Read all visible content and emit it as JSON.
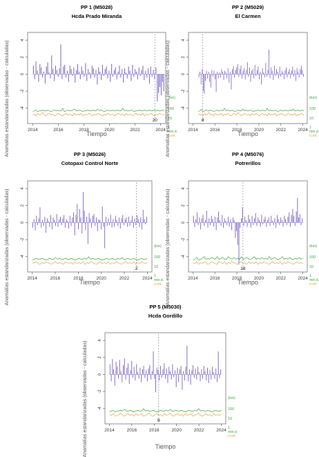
{
  "figure": {
    "ylabel": "Anomalías estandarizadas (observadas - calculadas)",
    "xlabel": "Tiempo",
    "right_labels": {
      "km": "(km)",
      "r100": "100",
      "r10": "10",
      "r1": "1",
      "mind": "min.d.",
      "nref": "n.ref."
    },
    "colors": {
      "bars": "#7b63c8",
      "green": "#3aa63a",
      "orange": "#e6a23c",
      "axis": "#444444",
      "marker": "#888888"
    }
  },
  "chart_data": [
    {
      "type": "bar",
      "title": "PP    1 (M5028)",
      "subtitle": "Hcda Prado Miranda",
      "xlim": [
        2013.6,
        2024.4
      ],
      "ylim": [
        -5.8,
        4.9
      ],
      "yticks": [
        -4,
        -2,
        0,
        2,
        4
      ],
      "xticks": [
        2014,
        2016,
        2018,
        2020,
        2022,
        2024
      ],
      "series_start": 2014.0,
      "series_end": 2024.3,
      "marker_x": 2023.55,
      "marker_label": "20",
      "bar_values": [
        1.0,
        -0.6,
        1.5,
        0.4,
        -0.9,
        1.2,
        0.8,
        -0.4,
        0.3,
        -1.1,
        0.9,
        1.4,
        0.2,
        -0.5,
        2.2,
        0.6,
        -0.8,
        1.0,
        0.5,
        -0.3,
        0.7,
        3.5,
        -0.6,
        0.9,
        1.1,
        -0.4,
        0.4,
        -0.9,
        1.0,
        0.6,
        -0.2,
        0.8,
        -1.0,
        0.5,
        1.2,
        0.3,
        -0.6,
        0.9,
        0.4,
        -0.3,
        1.3,
        -0.8,
        0.6,
        0.2,
        -0.5,
        1.0,
        0.7,
        -0.4,
        0.5,
        -1.2,
        0.8,
        0.3,
        -0.7,
        1.1,
        -0.2,
        0.6,
        0.9,
        -0.5,
        0.4,
        -0.9,
        1.2,
        -0.3,
        0.5,
        0.8,
        -0.6,
        0.3,
        1.0,
        -0.4,
        0.6,
        -1.0,
        0.7,
        0.2,
        -0.5,
        0.9,
        0.4,
        -0.8,
        1.1,
        -0.3,
        0.6,
        0.3,
        -0.6,
        0.8,
        -0.2,
        0.5,
        1.0,
        -0.7,
        0.4,
        -0.4,
        0.7,
        -1.1,
        0.9,
        -0.3,
        0.5,
        -0.6,
        0.8,
        -3.2,
        -2.2,
        -1.5,
        -2.5,
        -0.9,
        -2.0
      ],
      "green_values": [
        4.4,
        4.3,
        4.2,
        4.4,
        4.3,
        4.3,
        4.2,
        4.3,
        4.3,
        4.2,
        4.3,
        4.4,
        4.3,
        4.2,
        4.3,
        4.2,
        4.3,
        4.3,
        4.0,
        4.4,
        4.3,
        4.2,
        4.3,
        4.3,
        4.2,
        4.1,
        4.3,
        4.3,
        4.2,
        4.3,
        4.4,
        4.3,
        4.3,
        4.2,
        4.3,
        4.3,
        4.2,
        4.3,
        4.3,
        4.1,
        4.3,
        4.2,
        4.3,
        4.4,
        4.3,
        4.2,
        4.3,
        4.3,
        4.2,
        4.3,
        4.3,
        4.2,
        4.3,
        4.3,
        4.0,
        4.3,
        4.2,
        4.3,
        4.3,
        4.2,
        4.3,
        4.4,
        4.3,
        4.3,
        4.2,
        4.3,
        4.3,
        4.2,
        4.3,
        4.3,
        4.2,
        4.3,
        4.3,
        4.2,
        4.3,
        4.2,
        4.3,
        4.3,
        4.2,
        4.3
      ],
      "orange_values": [
        4.8,
        4.7,
        4.9,
        4.6,
        4.8,
        4.7,
        4.5,
        4.8,
        4.9,
        4.7,
        4.6,
        4.8,
        4.7,
        4.9,
        4.8,
        4.6,
        4.7,
        4.8,
        4.9,
        4.7,
        4.6,
        4.8,
        4.7,
        4.8,
        4.9,
        4.6,
        4.8,
        4.7,
        4.8,
        4.6,
        4.9,
        4.7,
        4.8,
        4.7,
        4.6,
        4.8,
        4.9,
        4.7,
        4.8,
        4.6,
        4.7,
        4.8,
        4.9,
        4.7,
        4.8,
        4.6,
        4.7,
        4.8,
        4.7,
        4.9,
        4.8,
        4.6,
        4.7,
        4.8,
        4.7,
        4.9,
        4.6,
        4.8,
        4.7,
        4.8,
        4.9,
        4.7,
        4.6,
        4.8,
        4.7,
        4.8,
        4.6,
        4.9,
        4.7,
        4.8,
        4.7,
        4.6,
        4.8,
        4.9,
        4.7,
        4.8,
        4.6,
        4.7,
        4.8,
        4.7
      ]
    },
    {
      "type": "bar",
      "title": "PP    2 (M5029)",
      "subtitle": "El Carmen",
      "xlim": [
        2013.6,
        2024.4
      ],
      "ylim": [
        -5.8,
        4.9
      ],
      "yticks": [
        -4,
        -2,
        0,
        2,
        4
      ],
      "xticks": [
        2014,
        2016,
        2018,
        2020,
        2022,
        2024
      ],
      "series_start": 2014.5,
      "series_end": 2024.1,
      "marker_x": 2014.9,
      "marker_label": "8",
      "bar_values": [
        -0.4,
        0.3,
        -1.2,
        0.6,
        -2.0,
        -2.3,
        -0.8,
        0.4,
        -0.5,
        0.3,
        -0.9,
        -1.6,
        0.5,
        -0.3,
        0.4,
        -0.6,
        -2.1,
        0.3,
        -0.5,
        0.2,
        -0.4,
        0.6,
        0.3,
        -0.7,
        0.4,
        0.2,
        -0.5,
        0.7,
        -1.0,
        0.3,
        -1.8,
        0.6,
        0.9,
        -0.4,
        0.5,
        0.8,
        1.2,
        -0.3,
        0.6,
        1.0,
        -0.5,
        0.4,
        0.7,
        -0.6,
        0.5,
        1.4,
        -0.3,
        0.8,
        -0.9,
        0.4,
        0.6,
        -0.5,
        1.1,
        -0.2,
        0.5,
        0.9,
        -0.6,
        0.3,
        -1.2,
        0.7,
        0.2,
        -0.4,
        1.3,
        -0.3,
        0.5,
        2.9,
        -0.5,
        0.8,
        0.4,
        -0.7,
        1.0,
        -0.2,
        0.6,
        0.3,
        -0.5,
        0.9,
        -0.3,
        0.4,
        0.2,
        -0.6,
        0.5,
        0.8,
        -0.4,
        0.3,
        0.6,
        -0.5,
        0.4,
        0.9,
        -0.3,
        0.5,
        -0.8,
        0.7,
        0.3,
        -0.4,
        0.6,
        1.0,
        0.5,
        -0.3
      ],
      "green_values": [
        4.4,
        4.3,
        4.1,
        4.4,
        4.3,
        4.2,
        4.3,
        4.3,
        4.2,
        4.3,
        4.4,
        4.3,
        4.2,
        4.3,
        4.3,
        4.2,
        4.3,
        4.0,
        4.3,
        4.2,
        4.3,
        4.3,
        4.2,
        4.3,
        4.4,
        4.3,
        4.2,
        4.3,
        4.3,
        4.1,
        4.3,
        4.2,
        4.3,
        4.3,
        4.2,
        4.3,
        4.4,
        4.3,
        4.3,
        4.2,
        4.3,
        4.3,
        4.2,
        4.3,
        4.3,
        4.0,
        4.3,
        4.2,
        4.3,
        4.3,
        4.2,
        4.3,
        4.4,
        4.3,
        4.2,
        4.3,
        4.3,
        4.2,
        4.3,
        4.3,
        4.2,
        4.3,
        4.1,
        4.3,
        4.3,
        4.2,
        4.3,
        4.3,
        4.2,
        4.3
      ],
      "orange_values": [
        4.6,
        4.8,
        4.7,
        4.9,
        4.6,
        4.8,
        4.7,
        4.5,
        4.8,
        4.7,
        4.9,
        4.6,
        4.8,
        4.7,
        4.8,
        4.6,
        4.9,
        4.7,
        4.8,
        4.6,
        4.7,
        4.9,
        4.8,
        4.6,
        4.7,
        4.8,
        4.5,
        4.7,
        4.9,
        4.8,
        4.6,
        4.7,
        4.8,
        4.7,
        4.9,
        4.6,
        4.8,
        4.7,
        4.6,
        4.8,
        4.9,
        4.7,
        4.6,
        4.8,
        4.7,
        4.9,
        4.6,
        4.8,
        4.7,
        4.8,
        4.6,
        4.9,
        4.7,
        4.8,
        4.6,
        4.7,
        4.8,
        4.9,
        4.7,
        4.6,
        4.8,
        4.7,
        4.8,
        4.6,
        4.9,
        4.7,
        4.8,
        4.6,
        4.7,
        4.8
      ]
    },
    {
      "type": "bar",
      "title": "PP    3 (M5026)",
      "subtitle": "Cotopaxi Control Norte",
      "xlim": [
        2013.6,
        2024.4
      ],
      "ylim": [
        -5.8,
        4.9
      ],
      "yticks": [
        -4,
        -2,
        0,
        2,
        4
      ],
      "xticks": [
        2014,
        2016,
        2018,
        2020,
        2022,
        2024
      ],
      "series_start": 2014.0,
      "series_end": 2024.0,
      "marker_x": 2023.05,
      "marker_label": "2",
      "bar_values": [
        -0.6,
        0.4,
        -0.9,
        0.8,
        -0.3,
        0.5,
        1.8,
        -0.6,
        0.3,
        -0.4,
        0.7,
        -1.2,
        0.5,
        0.2,
        -0.5,
        0.9,
        -0.8,
        0.6,
        0.3,
        -0.4,
        1.0,
        -0.5,
        0.4,
        0.7,
        -0.3,
        0.5,
        0.9,
        -0.6,
        0.4,
        0.2,
        -0.7,
        0.8,
        -0.4,
        0.6,
        1.2,
        -1.5,
        0.9,
        2.2,
        -0.8,
        1.6,
        0.6,
        -1.3,
        3.6,
        1.4,
        -0.9,
        0.7,
        -2.5,
        1.1,
        0.5,
        -0.6,
        0.8,
        1.0,
        -0.4,
        0.6,
        -1.0,
        0.4,
        0.3,
        -0.8,
        1.9,
        -0.5,
        -3.0,
        0.7,
        -0.4,
        0.5,
        -0.3,
        0.9,
        -0.6,
        0.4,
        -0.5,
        0.8,
        0.3,
        -0.4,
        0.6,
        -0.7,
        0.5,
        0.9,
        -0.3,
        0.4,
        0.6,
        -0.5,
        0.7,
        -0.4,
        0.3,
        0.8,
        -0.6,
        0.5,
        -0.3,
        0.9,
        0.4,
        -0.5,
        0.6,
        -0.8,
        1.5,
        0.4,
        -0.2,
        0.7
      ],
      "green_values": [
        4.4,
        4.3,
        4.2,
        4.3,
        4.3,
        4.2,
        4.3,
        4.4,
        4.3,
        4.2,
        4.3,
        4.3,
        4.1,
        4.3,
        4.2,
        4.3,
        4.3,
        4.2,
        4.3,
        4.3,
        4.2,
        4.3,
        4.4,
        4.3,
        4.2,
        4.3,
        4.3,
        4.2,
        4.3,
        4.0,
        4.3,
        4.2,
        4.3,
        4.3,
        4.2,
        4.3,
        4.4,
        4.3,
        4.2,
        4.3,
        4.3,
        4.2,
        4.3,
        4.3,
        4.2,
        4.3,
        4.1,
        4.3,
        4.3,
        4.2,
        4.3,
        4.3,
        4.2,
        4.3,
        4.4,
        4.3,
        4.2,
        4.3,
        4.3,
        4.2
      ],
      "orange_values": [
        4.8,
        4.7,
        4.6,
        4.8,
        4.9,
        4.7,
        4.8,
        4.6,
        4.7,
        4.8,
        4.9,
        4.7,
        4.6,
        4.8,
        4.7,
        4.8,
        4.9,
        4.6,
        4.7,
        4.8,
        4.7,
        4.9,
        4.6,
        4.8,
        4.7,
        4.8,
        4.6,
        4.9,
        4.7,
        4.8,
        4.6,
        4.7,
        4.8,
        4.9,
        4.7,
        4.6,
        4.8,
        4.7,
        4.8,
        4.6,
        4.9,
        4.7,
        4.8,
        4.6,
        4.7,
        4.8,
        4.9,
        4.7,
        4.6,
        4.8,
        4.7,
        4.8,
        4.6,
        4.9,
        4.7,
        4.8,
        4.6,
        4.7,
        4.8,
        4.7
      ]
    },
    {
      "type": "bar",
      "title": "PP    4 (M5076)",
      "subtitle": "Potrerillos",
      "xlim": [
        2013.6,
        2024.4
      ],
      "ylim": [
        -5.8,
        4.9
      ],
      "yticks": [
        -4,
        -2,
        0,
        2,
        4
      ],
      "xticks": [
        2014,
        2016,
        2018,
        2020,
        2022,
        2024
      ],
      "series_start": 2014.0,
      "series_end": 2024.0,
      "marker_x": 2018.55,
      "marker_label": "18",
      "bar_values": [
        0.8,
        -0.5,
        0.4,
        1.2,
        -0.3,
        0.6,
        -0.8,
        0.5,
        0.9,
        -0.4,
        0.3,
        1.4,
        -0.6,
        0.5,
        -0.3,
        0.8,
        0.4,
        -0.5,
        0.7,
        -0.9,
        0.6,
        1.3,
        0.3,
        -0.4,
        0.9,
        -0.6,
        0.5,
        0.2,
        -0.3,
        0.7,
        -0.5,
        0.4,
        -0.9,
        0.6,
        0.3,
        -1.8,
        -1.0,
        -2.6,
        -4.9,
        -0.6,
        0.5,
        1.8,
        -0.4,
        0.7,
        0.3,
        -0.5,
        0.9,
        0.4,
        -0.6,
        0.8,
        -0.3,
        0.5,
        1.1,
        -0.4,
        0.6,
        0.3,
        -0.5,
        0.9,
        -0.2,
        0.4,
        0.7,
        -0.5,
        0.3,
        0.6,
        -0.4,
        0.8,
        0.2,
        -0.3,
        0.5,
        -0.6,
        0.9,
        0.4,
        -0.3,
        0.6,
        0.3,
        -0.5,
        0.8,
        0.4,
        -0.3,
        0.7,
        1.2,
        -0.5,
        0.9,
        1.6,
        0.8,
        -0.4,
        1.3,
        2.9,
        0.6,
        1.0,
        -0.3,
        0.5
      ],
      "green_values": [
        4.4,
        4.3,
        4.1,
        4.4,
        4.3,
        4.2,
        4.0,
        4.3,
        4.2,
        4.3,
        4.1,
        4.2,
        4.3,
        4.0,
        4.3,
        4.2,
        4.1,
        4.3,
        4.3,
        4.0,
        4.2,
        4.3,
        4.1,
        4.3,
        4.2,
        4.3,
        4.0,
        4.3,
        4.2,
        4.1,
        4.3,
        4.3,
        4.2,
        4.0,
        4.3,
        4.2,
        4.3,
        4.1,
        4.3,
        4.2,
        4.3,
        4.0,
        4.3,
        4.2,
        4.1,
        4.3,
        4.3,
        4.2,
        4.0,
        4.3,
        4.2,
        4.3,
        4.1,
        4.3,
        4.3,
        4.2,
        4.3,
        4.1,
        4.3,
        4.2
      ],
      "orange_values": [
        4.7,
        4.8,
        4.6,
        4.9,
        4.7,
        4.8,
        4.6,
        4.7,
        4.9,
        4.8,
        4.6,
        4.7,
        4.8,
        4.9,
        4.6,
        4.7,
        4.8,
        4.6,
        4.9,
        4.7,
        4.8,
        4.6,
        4.7,
        4.8,
        4.9,
        4.7,
        4.6,
        4.8,
        4.7,
        4.9,
        4.6,
        4.8,
        4.7,
        4.8,
        4.6,
        4.9,
        4.7,
        4.8,
        4.6,
        4.7,
        4.8,
        4.9,
        4.7,
        4.6,
        4.8,
        4.7,
        4.8,
        4.6,
        4.9,
        4.7,
        4.8,
        4.6,
        4.7,
        4.8,
        4.9,
        4.7,
        4.6,
        4.8,
        4.7,
        4.8
      ]
    },
    {
      "type": "bar",
      "title": "PP    5 (M5030)",
      "subtitle": "Hcda Gordillo",
      "xlim": [
        2013.6,
        2024.4
      ],
      "ylim": [
        -5.8,
        4.9
      ],
      "yticks": [
        -4,
        -2,
        0,
        2,
        4
      ],
      "xticks": [
        2014,
        2016,
        2018,
        2020,
        2022,
        2024
      ],
      "series_start": 2014.0,
      "series_end": 2024.0,
      "marker_x": 2018.4,
      "marker_label": "9",
      "bar_values": [
        1.2,
        -0.8,
        1.8,
        0.6,
        -1.3,
        1.5,
        0.9,
        -0.5,
        1.7,
        0.4,
        -0.9,
        1.1,
        1.9,
        -0.6,
        0.8,
        1.3,
        -1.1,
        0.5,
        1.6,
        -0.4,
        0.9,
        -0.7,
        1.2,
        0.3,
        -0.5,
        0.8,
        -0.9,
        0.6,
        1.0,
        -0.4,
        0.5,
        -0.8,
        0.7,
        1.1,
        -0.6,
        0.4,
        2.7,
        -0.5,
        -2.1,
        0.8,
        0.5,
        -0.7,
        1.0,
        -0.4,
        0.6,
        1.3,
        -0.5,
        0.7,
        -1.0,
        0.9,
        0.4,
        -0.6,
        1.2,
        -0.3,
        0.5,
        -1.5,
        0.8,
        -0.9,
        0.6,
        1.0,
        -1.8,
        0.4,
        -0.7,
        0.9,
        3.4,
        -0.8,
        0.6,
        -1.2,
        0.5,
        1.1,
        -0.4,
        0.7,
        -0.6,
        0.9,
        0.3,
        -0.8,
        0.6,
        -0.5,
        1.0,
        0.4,
        -0.7,
        0.8,
        -1.0,
        0.5,
        -0.6,
        0.9,
        0.3,
        -0.5,
        0.7,
        -0.9,
        2.7,
        -0.4,
        0.6
      ],
      "green_values": [
        4.4,
        4.3,
        4.2,
        4.4,
        4.3,
        4.3,
        4.2,
        4.3,
        4.1,
        4.3,
        4.3,
        4.2,
        4.3,
        4.4,
        4.3,
        4.2,
        4.3,
        4.3,
        4.0,
        4.3,
        4.2,
        4.3,
        4.3,
        4.2,
        4.3,
        4.4,
        4.3,
        4.2,
        4.3,
        4.3,
        4.2,
        4.3,
        4.1,
        4.3,
        4.3,
        4.2,
        4.3,
        4.3,
        4.2,
        4.3,
        4.4,
        4.3,
        4.2,
        4.3,
        4.3,
        4.2,
        4.3,
        4.0,
        4.3,
        4.2,
        4.3,
        4.3,
        4.2,
        4.3,
        4.4,
        4.3,
        4.2,
        4.3,
        4.3,
        4.2
      ],
      "orange_values": [
        4.7,
        4.8,
        4.6,
        4.9,
        4.8,
        4.7,
        4.5,
        4.8,
        4.9,
        4.7,
        4.6,
        4.8,
        4.7,
        4.9,
        4.6,
        4.8,
        4.7,
        4.6,
        4.9,
        4.8,
        4.7,
        4.5,
        4.8,
        4.9,
        4.7,
        4.6,
        4.8,
        4.7,
        4.9,
        4.6,
        4.8,
        4.7,
        4.5,
        4.8,
        4.9,
        4.7,
        4.6,
        4.8,
        4.7,
        4.9,
        4.6,
        4.8,
        4.7,
        4.6,
        4.9,
        4.8,
        4.7,
        4.5,
        4.8,
        4.9,
        4.7,
        4.6,
        4.8,
        4.7,
        4.9,
        4.6,
        4.8,
        4.7,
        4.8,
        4.6
      ]
    }
  ]
}
